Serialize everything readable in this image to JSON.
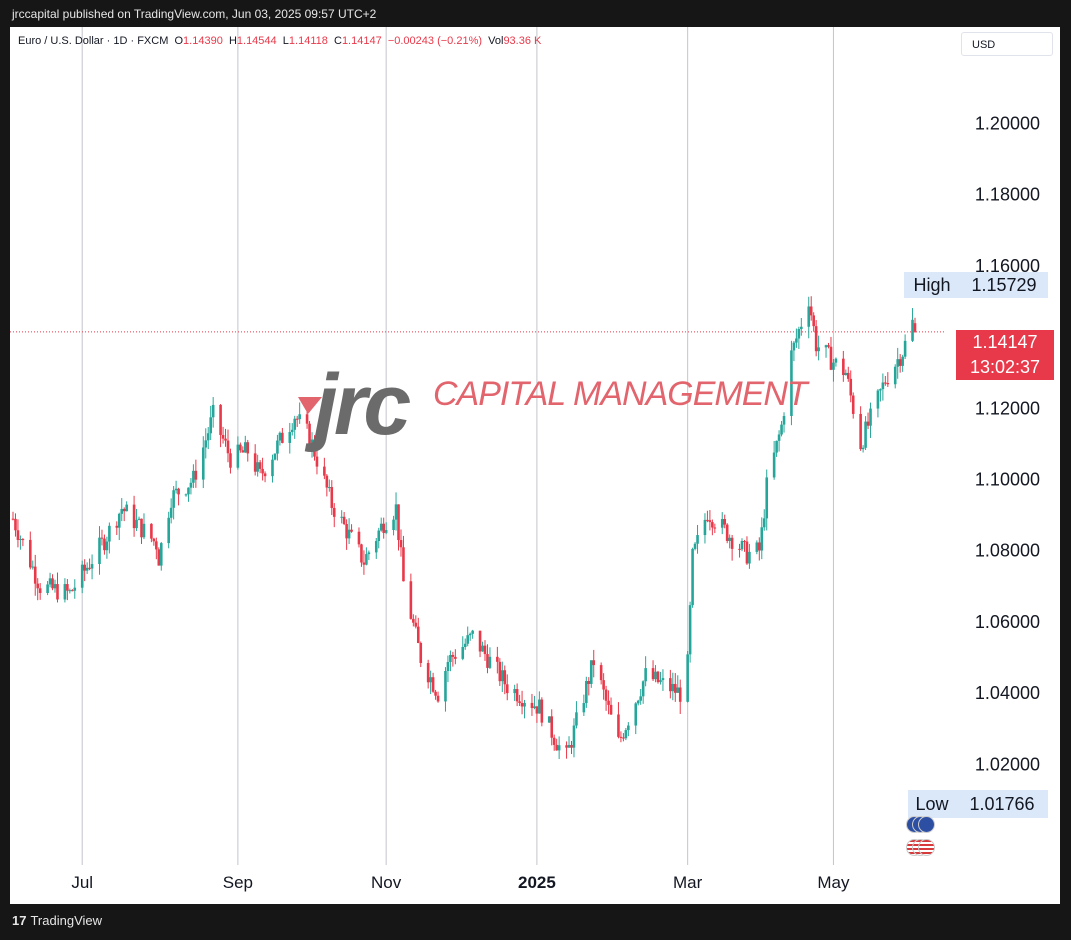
{
  "header": {
    "published_line": "jrccapital published on TradingView.com, Jun 03, 2025 09:57 UTC+2"
  },
  "legend": {
    "symbol": "Euro / U.S. Dollar · 1D · FXCM",
    "o_label": "O",
    "o_value": "1.14390",
    "h_label": "H",
    "h_value": "1.14544",
    "l_label": "L",
    "l_value": "1.14118",
    "c_label": "C",
    "c_value": "1.14147",
    "change": "−0.00243 (−0.21%)",
    "vol_label": "Vol",
    "vol_value": "93.36 K"
  },
  "currency_selector": "USD",
  "markers": {
    "high_label": "High",
    "high_value": "1.15729",
    "low_label": "Low",
    "low_value": "1.01766",
    "last_price": "1.14147",
    "countdown": "13:02:37"
  },
  "watermark": {
    "logo_text": "jrc",
    "text": "CAPITAL MANAGEMENT"
  },
  "footer": {
    "brand": "TradingView",
    "brand_mark": "17"
  },
  "colors": {
    "up": "#26a69a",
    "down": "#e8394a",
    "grid": "#c2c5cc",
    "last_line": "#e8394a",
    "label_bg": "#dbe8f9"
  },
  "chart_data": {
    "type": "candlestick",
    "title": "Euro / U.S. Dollar · 1D · FXCM",
    "ylim": [
      1.01,
      1.215
    ],
    "y_ticks": [
      1.2,
      1.18,
      1.16,
      1.12,
      1.1,
      1.08,
      1.06,
      1.04,
      1.02
    ],
    "y_tick_labels": [
      "1.20000",
      "1.18000",
      "1.16000",
      "1.12000",
      "1.10000",
      "1.08000",
      "1.06000",
      "1.04000",
      "1.02000"
    ],
    "x_tick_labels": [
      {
        "label": "Jul",
        "date": "2024-07-01",
        "bold": false
      },
      {
        "label": "Sep",
        "date": "2024-09-02",
        "bold": false
      },
      {
        "label": "Nov",
        "date": "2024-11-01",
        "bold": false
      },
      {
        "label": "2025",
        "date": "2025-01-01",
        "bold": true
      },
      {
        "label": "Mar",
        "date": "2025-03-03",
        "bold": false
      },
      {
        "label": "May",
        "date": "2025-05-01",
        "bold": false
      }
    ],
    "date_range": [
      "2024-06-03",
      "2025-06-03"
    ],
    "anchors": [
      [
        "2024-06-03",
        1.089
      ],
      [
        "2024-06-14",
        1.07
      ],
      [
        "2024-06-26",
        1.068
      ],
      [
        "2024-07-10",
        1.083
      ],
      [
        "2024-07-17",
        1.092
      ],
      [
        "2024-07-31",
        1.082
      ],
      [
        "2024-08-01",
        1.078
      ],
      [
        "2024-08-06",
        1.095
      ],
      [
        "2024-08-15",
        1.1
      ],
      [
        "2024-08-23",
        1.118
      ],
      [
        "2024-08-30",
        1.106
      ],
      [
        "2024-09-06",
        1.108
      ],
      [
        "2024-09-11",
        1.101
      ],
      [
        "2024-09-25",
        1.118
      ],
      [
        "2024-10-01",
        1.112
      ],
      [
        "2024-10-10",
        1.093
      ],
      [
        "2024-10-23",
        1.077
      ],
      [
        "2024-10-31",
        1.088
      ],
      [
        "2024-11-05",
        1.092
      ],
      [
        "2024-11-08",
        1.071
      ],
      [
        "2024-11-15",
        1.05
      ],
      [
        "2024-11-22",
        1.04
      ],
      [
        "2024-11-26",
        1.049
      ],
      [
        "2024-12-06",
        1.056
      ],
      [
        "2024-12-13",
        1.049
      ],
      [
        "2024-12-20",
        1.042
      ],
      [
        "2025-01-02",
        1.036
      ],
      [
        "2025-01-10",
        1.025
      ],
      [
        "2025-01-13",
        1.022
      ],
      [
        "2025-01-24",
        1.049
      ],
      [
        "2025-02-03",
        1.026
      ],
      [
        "2025-02-14",
        1.045
      ],
      [
        "2025-02-28",
        1.04
      ],
      [
        "2025-03-03",
        1.048
      ],
      [
        "2025-03-05",
        1.078
      ],
      [
        "2025-03-11",
        1.091
      ],
      [
        "2025-03-27",
        1.079
      ],
      [
        "2025-04-01",
        1.08
      ],
      [
        "2025-04-02",
        1.085
      ],
      [
        "2025-04-04",
        1.098
      ],
      [
        "2025-04-10",
        1.115
      ],
      [
        "2025-04-14",
        1.135
      ],
      [
        "2025-04-21",
        1.151
      ],
      [
        "2025-04-24",
        1.138
      ],
      [
        "2025-05-01",
        1.133
      ],
      [
        "2025-05-06",
        1.13
      ],
      [
        "2025-05-12",
        1.11
      ],
      [
        "2025-05-16",
        1.117
      ],
      [
        "2025-05-22",
        1.128
      ],
      [
        "2025-05-29",
        1.136
      ],
      [
        "2025-06-02",
        1.144
      ],
      [
        "2025-06-03",
        1.1415
      ]
    ],
    "high": 1.15729,
    "low": 1.01766,
    "last": {
      "open": 1.1439,
      "high": 1.14544,
      "low": 1.14118,
      "close": 1.14147
    }
  }
}
